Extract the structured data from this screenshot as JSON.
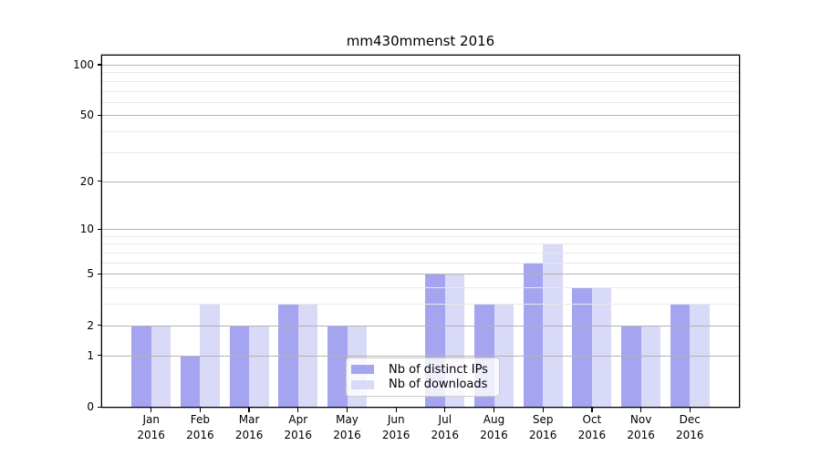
{
  "chart_data": {
    "type": "bar",
    "title": "mm430mmenst 2016",
    "categories": [
      "Jan 2016",
      "Feb 2016",
      "Mar 2016",
      "Apr 2016",
      "May 2016",
      "Jun 2016",
      "Jul 2016",
      "Aug 2016",
      "Sep 2016",
      "Oct 2016",
      "Nov 2016",
      "Dec 2016"
    ],
    "series": [
      {
        "name": "Nb of distinct IPs",
        "color": "#a4a4f1",
        "values": [
          2,
          1,
          2,
          3,
          2,
          0,
          5,
          3,
          6,
          4,
          2,
          3
        ]
      },
      {
        "name": "Nb of downloads",
        "color": "#d9d9f8",
        "values": [
          2,
          3,
          2,
          3,
          2,
          0,
          5,
          3,
          8,
          4,
          2,
          3
        ]
      }
    ],
    "y_axis": {
      "scale": "log10(1+x)",
      "major_ticks": [
        0,
        1,
        2,
        5,
        10,
        20,
        50,
        100
      ],
      "minor_ticks": [
        3,
        4,
        6,
        7,
        8,
        9,
        30,
        40,
        60,
        70,
        80,
        90
      ],
      "ylim": [
        0,
        113
      ]
    },
    "x_axis": {
      "xlim_units": [
        -1,
        12
      ],
      "bar_width_units": 0.4
    },
    "legend": {
      "position": "lower center",
      "entries": [
        "Nb of distinct IPs",
        "Nb of downloads"
      ]
    },
    "grid": true
  },
  "colors": {
    "background": "#ffffff",
    "bar_distinct_ips": "#a4a4f1",
    "bar_downloads": "#d9d9f8",
    "grid_major": "#b3b3b3",
    "grid_minor": "#e9e9e9",
    "axis": "#000000",
    "legend_border": "#cccccc"
  }
}
